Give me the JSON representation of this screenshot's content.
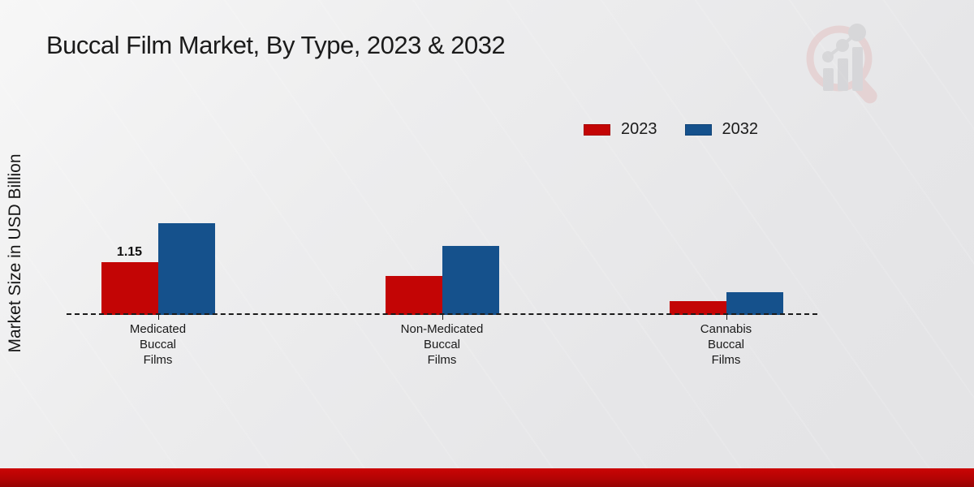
{
  "page": {
    "title": "Buccal Film Market, By Type, 2023 & 2032",
    "y_axis_label": "Market Size in USD Billion"
  },
  "legend": {
    "position": "upper right",
    "items": [
      {
        "label": "2023",
        "color": "#c30505"
      },
      {
        "label": "2032",
        "color": "#15518c"
      }
    ]
  },
  "chart_data": {
    "type": "bar",
    "title": "Buccal Film Market, By Type, 2023 & 2032",
    "xlabel": "",
    "ylabel": "Market Size in USD Billion",
    "categories": [
      "Medicated Buccal Films",
      "Non-Medicated Buccal Films",
      "Cannabis Buccal Films"
    ],
    "category_label_lines": [
      "Medicated\nBuccal\nFilms",
      "Non-Medicated\nBuccal\nFilms",
      "Cannabis\nBuccal\nFilms"
    ],
    "series": [
      {
        "name": "2023",
        "color": "#c30505",
        "values": [
          1.15,
          0.85,
          0.3
        ]
      },
      {
        "name": "2032",
        "color": "#15518c",
        "values": [
          2.0,
          1.5,
          0.5
        ]
      }
    ],
    "data_labels": [
      {
        "series_index": 0,
        "category_index": 0,
        "text": "1.15"
      }
    ],
    "baseline": {
      "value": 0,
      "style": "dashed",
      "color": "#1a1a1a"
    },
    "grid": false,
    "ylim": [
      0,
      2.2
    ],
    "legend_position": "upper right"
  },
  "watermark": {
    "icon": "magnifier-bar-chart-logo-icon"
  },
  "footer": {
    "band_color": "#b30404"
  }
}
